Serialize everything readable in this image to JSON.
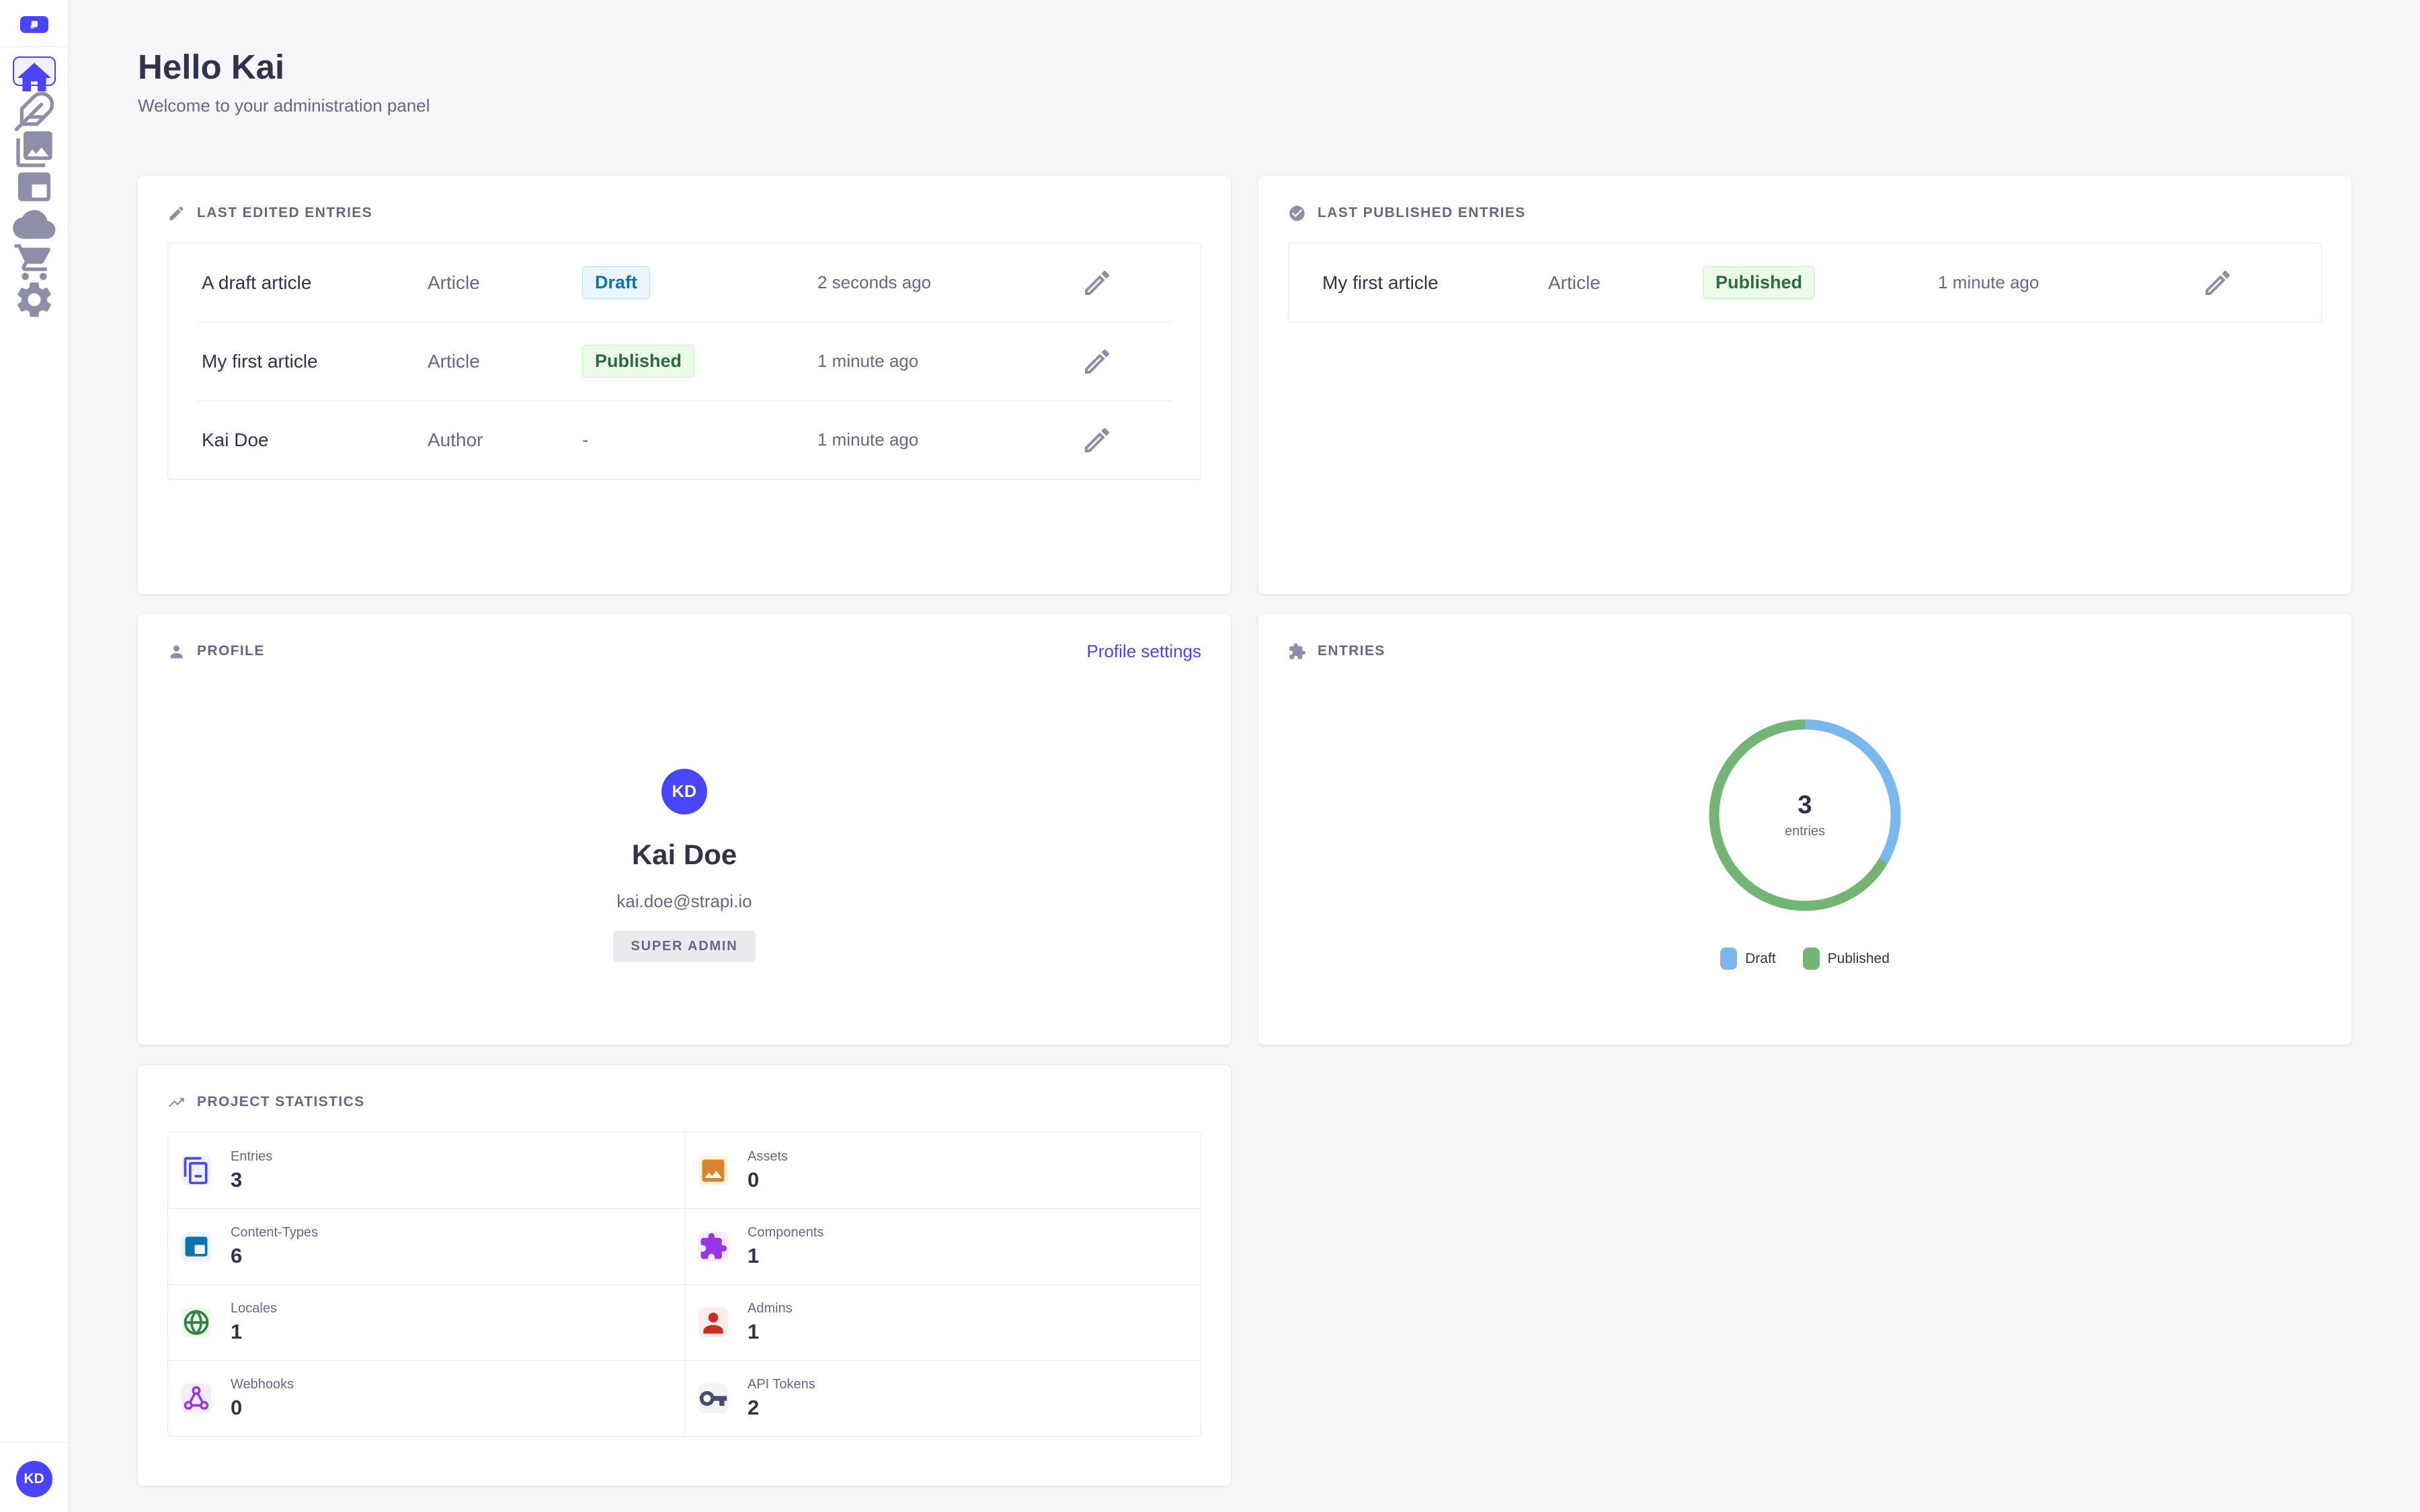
{
  "colors": {
    "accent": "#4945ff",
    "background": "#f6f6f9",
    "border": "#eaeaef",
    "text_primary": "#32324d",
    "text_secondary": "#666687",
    "draft_badge": {
      "bg": "#eaf5ff",
      "border": "#b8e1ff",
      "text": "#0c75af"
    },
    "published_badge": {
      "bg": "#eafbe7",
      "border": "#c6f0c2",
      "text": "#2f6846"
    }
  },
  "sidebar": {
    "logo_icon": "strapi-logo-icon",
    "items": [
      {
        "id": "home",
        "icon": "home-icon",
        "active": true
      },
      {
        "id": "content-manager",
        "icon": "feather-icon",
        "active": false
      },
      {
        "id": "media-library",
        "icon": "photos-icon",
        "active": false
      },
      {
        "id": "content-type-builder",
        "icon": "layout-icon",
        "active": false
      },
      {
        "id": "deploy",
        "icon": "cloud-icon",
        "active": false
      },
      {
        "id": "marketplace",
        "icon": "cart-icon",
        "active": false
      },
      {
        "id": "settings",
        "icon": "gear-icon",
        "active": false
      }
    ],
    "user_initials": "KD"
  },
  "header": {
    "title": "Hello Kai",
    "subtitle": "Welcome to your administration panel"
  },
  "cards": {
    "last_edited": {
      "title": "LAST EDITED ENTRIES",
      "icon": "pencil-icon",
      "rows": [
        {
          "name": "A draft article",
          "type": "Article",
          "status": "Draft",
          "status_kind": "draft",
          "time": "2 seconds ago"
        },
        {
          "name": "My first article",
          "type": "Article",
          "status": "Published",
          "status_kind": "published",
          "time": "1 minute ago"
        },
        {
          "name": "Kai Doe",
          "type": "Author",
          "status": "-",
          "status_kind": "none",
          "time": "1 minute ago"
        }
      ]
    },
    "last_published": {
      "title": "LAST PUBLISHED ENTRIES",
      "icon": "check-circle-icon",
      "rows": [
        {
          "name": "My first article",
          "type": "Article",
          "status": "Published",
          "status_kind": "published",
          "time": "1 minute ago"
        }
      ]
    },
    "profile": {
      "title": "PROFILE",
      "icon": "person-icon",
      "link_label": "Profile settings",
      "initials": "KD",
      "name": "Kai Doe",
      "email": "kai.doe@strapi.io",
      "role": "SUPER ADMIN"
    },
    "entries": {
      "title": "ENTRIES",
      "icon": "puzzle-icon",
      "center_value": "3",
      "center_label": "entries"
    },
    "stats": {
      "title": "PROJECT STATISTICS",
      "icon": "trend-icon",
      "items": [
        {
          "label": "Entries",
          "value": "3",
          "icon": "copy-icon"
        },
        {
          "label": "Assets",
          "value": "0",
          "icon": "image-icon"
        },
        {
          "label": "Content-Types",
          "value": "6",
          "icon": "layout-icon"
        },
        {
          "label": "Components",
          "value": "1",
          "icon": "puzzle-icon"
        },
        {
          "label": "Locales",
          "value": "1",
          "icon": "globe-icon"
        },
        {
          "label": "Admins",
          "value": "1",
          "icon": "person-icon"
        },
        {
          "label": "Webhooks",
          "value": "0",
          "icon": "webhook-icon"
        },
        {
          "label": "API Tokens",
          "value": "2",
          "icon": "key-icon"
        }
      ]
    }
  },
  "chart_data": {
    "type": "pie",
    "title": "ENTRIES",
    "center_value": 3,
    "center_label": "entries",
    "series": [
      {
        "label": "Draft",
        "value": 1,
        "color": "#7ab7ec"
      },
      {
        "label": "Published",
        "value": 2,
        "color": "#72b574"
      }
    ],
    "legend_position": "bottom",
    "donut": true
  }
}
